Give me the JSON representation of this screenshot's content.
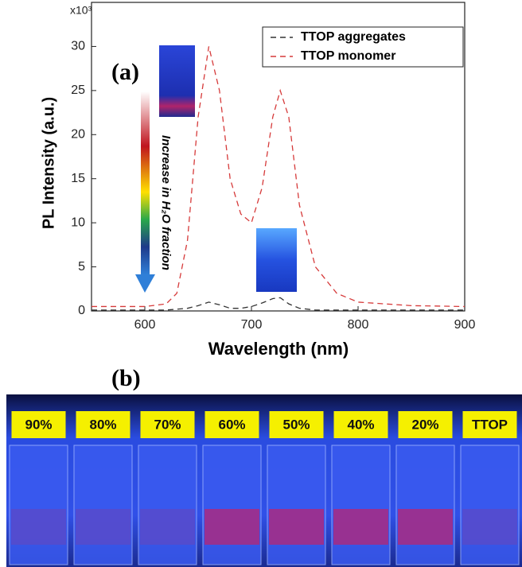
{
  "chart_data": {
    "type": "line",
    "panel_label": "(a)",
    "multiplier": "x10³",
    "x_label": "Wavelength (nm)",
    "y_label": "PL Intensity (a.u.)",
    "annotation": "Increase in H₂O fraction",
    "x": [
      550,
      600,
      620,
      630,
      640,
      650,
      660,
      670,
      680,
      690,
      700,
      710,
      720,
      727,
      735,
      745,
      760,
      780,
      800,
      850,
      900
    ],
    "series": [
      {
        "name": "TTOP aggregates",
        "color": "#333333",
        "values": [
          0.1,
          0.1,
          0.1,
          0.2,
          0.3,
          0.6,
          1,
          0.7,
          0.3,
          0.3,
          0.5,
          0.9,
          1.4,
          1.5,
          0.8,
          0.3,
          0.1,
          0.1,
          0.1,
          0.1,
          0.1
        ]
      },
      {
        "name": "TTOP monomer",
        "color": "#d63a3a",
        "values": [
          0.5,
          0.5,
          0.8,
          2,
          8,
          22,
          30,
          25,
          15,
          11,
          10,
          14,
          22,
          25,
          22,
          12,
          5,
          2,
          1,
          0.6,
          0.5
        ]
      }
    ],
    "xlim": [
      550,
      900
    ],
    "xticks": [
      600,
      700,
      800,
      900
    ],
    "ylim": [
      0,
      35
    ],
    "yticks": [
      0,
      5,
      10,
      15,
      20,
      25,
      30
    ],
    "legend": "top-right"
  },
  "photo": {
    "panel_label": "(b)",
    "labels": [
      "90%",
      "80%",
      "70%",
      "60%",
      "50%",
      "40%",
      "20%",
      "TTOP"
    ]
  }
}
